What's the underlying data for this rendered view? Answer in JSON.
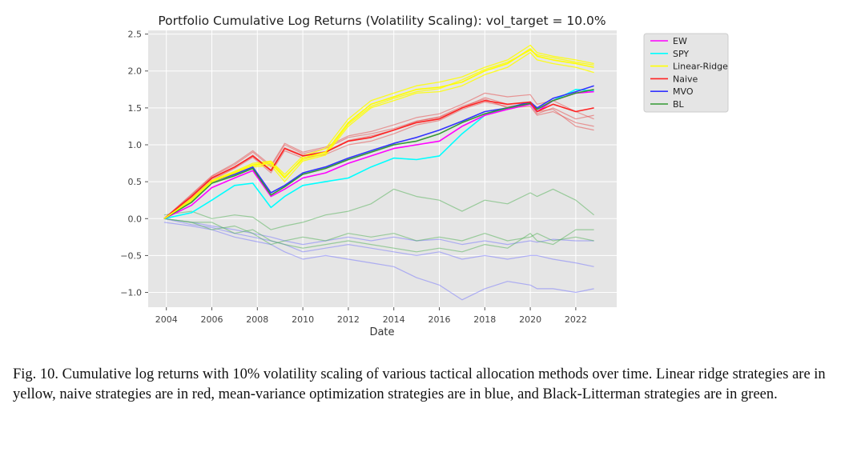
{
  "figure": {
    "caption": "Fig. 10.  Cumulative log returns with 10% volatility scaling of various tactical allocation methods over time. Linear ridge strategies are in yellow, naive strategies are in red, mean-variance optimization strategies are in blue, and Black-Litterman strategies are in green."
  },
  "chart_data": {
    "type": "line",
    "title": "Portfolio Cumulative Log Returns (Volatility Scaling): vol_target = 10.0%",
    "xlabel": "Date",
    "ylabel": "",
    "xlim": [
      2003.2,
      2023.8
    ],
    "ylim": [
      -1.2,
      2.55
    ],
    "x_ticks": [
      2004,
      2006,
      2008,
      2010,
      2012,
      2014,
      2016,
      2018,
      2020,
      2022
    ],
    "y_ticks": [
      2.5,
      2.0,
      1.5,
      1.0,
      0.5,
      0.0,
      -0.5,
      -1.0
    ],
    "y_tick_labels": [
      "2.5",
      "2.0",
      "1.5",
      "1.0",
      "0.5",
      "0.0",
      "−0.5",
      "−1.0"
    ],
    "grid": true,
    "background": "#e5e5e5",
    "legend_position": "upper-right (outside plot)",
    "legend": [
      {
        "name": "EW",
        "color": "#ff00ff"
      },
      {
        "name": "SPY",
        "color": "#00ffff"
      },
      {
        "name": "Linear-Ridge",
        "color": "#ffff00"
      },
      {
        "name": "Naive",
        "color": "#ff2222"
      },
      {
        "name": "MVO",
        "color": "#3333ff"
      },
      {
        "name": "BL",
        "color": "#339933"
      }
    ],
    "x": [
      2003.9,
      2005.1,
      2006.0,
      2007.0,
      2007.8,
      2008.6,
      2009.2,
      2010.0,
      2011.0,
      2012.0,
      2013.0,
      2014.0,
      2015.0,
      2016.0,
      2017.0,
      2018.0,
      2019.0,
      2020.0,
      2020.3,
      2021.0,
      2022.0,
      2022.8
    ],
    "series": [
      {
        "name": "SPY",
        "color": "#00ffff",
        "opacity": 1.0,
        "width": 1.6,
        "values": [
          0.0,
          0.08,
          0.25,
          0.45,
          0.48,
          0.15,
          0.3,
          0.45,
          0.5,
          0.55,
          0.7,
          0.82,
          0.8,
          0.85,
          1.15,
          1.4,
          1.5,
          1.55,
          1.45,
          1.6,
          1.75,
          1.73
        ]
      },
      {
        "name": "EW",
        "color": "#ff00ff",
        "opacity": 1.0,
        "width": 1.6,
        "values": [
          0.0,
          0.18,
          0.42,
          0.55,
          0.65,
          0.3,
          0.4,
          0.55,
          0.62,
          0.75,
          0.85,
          0.95,
          1.0,
          1.05,
          1.25,
          1.4,
          1.48,
          1.55,
          1.45,
          1.6,
          1.7,
          1.72
        ]
      },
      {
        "name": "MVO",
        "color": "#3333ff",
        "opacity": 1.0,
        "width": 1.6,
        "values": [
          0.0,
          0.25,
          0.5,
          0.6,
          0.7,
          0.35,
          0.45,
          0.62,
          0.7,
          0.82,
          0.92,
          1.02,
          1.1,
          1.2,
          1.32,
          1.45,
          1.5,
          1.58,
          1.5,
          1.63,
          1.72,
          1.8
        ]
      },
      {
        "name": "BL",
        "color": "#339933",
        "opacity": 1.0,
        "width": 1.6,
        "values": [
          0.0,
          0.22,
          0.48,
          0.58,
          0.68,
          0.32,
          0.43,
          0.6,
          0.68,
          0.8,
          0.9,
          1.0,
          1.05,
          1.15,
          1.3,
          1.42,
          1.5,
          1.56,
          1.48,
          1.6,
          1.7,
          1.75
        ]
      },
      {
        "name": "Naive",
        "color": "#ff2222",
        "opacity": 1.0,
        "width": 1.6,
        "values": [
          0.0,
          0.3,
          0.55,
          0.7,
          0.85,
          0.65,
          0.95,
          0.85,
          0.9,
          1.05,
          1.1,
          1.2,
          1.3,
          1.35,
          1.5,
          1.6,
          1.55,
          1.58,
          1.45,
          1.55,
          1.45,
          1.5
        ]
      },
      {
        "name": "Linear-Ridge",
        "color": "#ffff00",
        "opacity": 1.0,
        "width": 1.6,
        "values": [
          0.0,
          0.25,
          0.5,
          0.62,
          0.72,
          0.75,
          0.55,
          0.82,
          0.9,
          1.3,
          1.55,
          1.65,
          1.75,
          1.78,
          1.85,
          2.0,
          2.1,
          2.3,
          2.2,
          2.15,
          2.1,
          2.05
        ]
      },
      {
        "name": "",
        "color": "#e85050",
        "opacity": 0.55,
        "width": 1.2,
        "values": [
          0.0,
          0.32,
          0.57,
          0.73,
          0.9,
          0.7,
          1.0,
          0.88,
          0.95,
          1.1,
          1.15,
          1.22,
          1.32,
          1.38,
          1.52,
          1.62,
          1.5,
          1.52,
          1.4,
          1.45,
          1.3,
          1.25
        ]
      },
      {
        "name": "",
        "color": "#e85050",
        "opacity": 0.55,
        "width": 1.2,
        "values": [
          0.0,
          0.28,
          0.52,
          0.68,
          0.83,
          0.62,
          0.92,
          0.82,
          0.87,
          1.0,
          1.05,
          1.15,
          1.27,
          1.33,
          1.48,
          1.58,
          1.52,
          1.55,
          1.42,
          1.5,
          1.35,
          1.4
        ]
      },
      {
        "name": "",
        "color": "#e85050",
        "opacity": 0.55,
        "width": 1.2,
        "values": [
          0.0,
          0.33,
          0.58,
          0.75,
          0.92,
          0.72,
          1.02,
          0.9,
          0.97,
          1.12,
          1.18,
          1.27,
          1.37,
          1.42,
          1.55,
          1.7,
          1.65,
          1.68,
          1.55,
          1.6,
          1.45,
          1.35
        ]
      },
      {
        "name": "",
        "color": "#e85050",
        "opacity": 0.55,
        "width": 1.2,
        "values": [
          0.0,
          0.29,
          0.54,
          0.69,
          0.86,
          0.66,
          0.96,
          0.86,
          0.91,
          1.06,
          1.12,
          1.2,
          1.32,
          1.37,
          1.5,
          1.64,
          1.55,
          1.57,
          1.45,
          1.48,
          1.25,
          1.2
        ]
      },
      {
        "name": "",
        "color": "#ffff00",
        "opacity": 0.85,
        "width": 1.3,
        "values": [
          0.0,
          0.27,
          0.52,
          0.64,
          0.75,
          0.78,
          0.6,
          0.85,
          0.95,
          1.35,
          1.6,
          1.7,
          1.8,
          1.85,
          1.92,
          2.05,
          2.15,
          2.35,
          2.25,
          2.2,
          2.15,
          2.1
        ]
      },
      {
        "name": "",
        "color": "#ffff00",
        "opacity": 0.85,
        "width": 1.3,
        "values": [
          0.0,
          0.23,
          0.48,
          0.6,
          0.7,
          0.72,
          0.5,
          0.78,
          0.86,
          1.25,
          1.5,
          1.6,
          1.7,
          1.72,
          1.8,
          1.95,
          2.05,
          2.25,
          2.15,
          2.1,
          2.05,
          1.98
        ]
      },
      {
        "name": "",
        "color": "#ffff00",
        "opacity": 0.85,
        "width": 1.3,
        "values": [
          0.0,
          0.26,
          0.51,
          0.63,
          0.73,
          0.77,
          0.57,
          0.8,
          0.88,
          1.28,
          1.52,
          1.63,
          1.72,
          1.76,
          1.88,
          2.02,
          2.12,
          2.28,
          2.22,
          2.18,
          2.12,
          2.08
        ]
      },
      {
        "name": "",
        "color": "#4caf50",
        "opacity": 0.5,
        "width": 1.2,
        "values": [
          0.05,
          0.1,
          0.0,
          0.05,
          0.02,
          -0.15,
          -0.1,
          -0.05,
          0.05,
          0.1,
          0.2,
          0.4,
          0.3,
          0.25,
          0.1,
          0.25,
          0.2,
          0.35,
          0.3,
          0.4,
          0.25,
          0.05
        ]
      },
      {
        "name": "",
        "color": "#4caf50",
        "opacity": 0.5,
        "width": 1.2,
        "values": [
          0.0,
          -0.05,
          -0.15,
          -0.1,
          -0.2,
          -0.35,
          -0.3,
          -0.25,
          -0.3,
          -0.2,
          -0.25,
          -0.2,
          -0.3,
          -0.25,
          -0.3,
          -0.2,
          -0.3,
          -0.25,
          -0.2,
          -0.3,
          -0.25,
          -0.3
        ]
      },
      {
        "name": "",
        "color": "#4caf50",
        "opacity": 0.5,
        "width": 1.2,
        "values": [
          0.0,
          -0.05,
          -0.05,
          -0.2,
          -0.15,
          -0.3,
          -0.35,
          -0.4,
          -0.35,
          -0.3,
          -0.35,
          -0.4,
          -0.45,
          -0.4,
          -0.45,
          -0.35,
          -0.4,
          -0.2,
          -0.3,
          -0.35,
          -0.15,
          -0.15
        ]
      },
      {
        "name": "",
        "color": "#6666ff",
        "opacity": 0.45,
        "width": 1.2,
        "values": [
          -0.05,
          -0.1,
          -0.15,
          -0.25,
          -0.3,
          -0.35,
          -0.45,
          -0.55,
          -0.5,
          -0.55,
          -0.6,
          -0.65,
          -0.8,
          -0.9,
          -1.1,
          -0.95,
          -0.85,
          -0.9,
          -0.95,
          -0.95,
          -1.0,
          -0.95
        ]
      },
      {
        "name": "",
        "color": "#6666ff",
        "opacity": 0.45,
        "width": 1.2,
        "values": [
          0.0,
          -0.08,
          -0.12,
          -0.2,
          -0.25,
          -0.3,
          -0.35,
          -0.45,
          -0.4,
          -0.35,
          -0.4,
          -0.45,
          -0.5,
          -0.45,
          -0.55,
          -0.5,
          -0.55,
          -0.5,
          -0.5,
          -0.55,
          -0.6,
          -0.65
        ]
      },
      {
        "name": "",
        "color": "#6666ff",
        "opacity": 0.45,
        "width": 1.2,
        "values": [
          0.0,
          -0.05,
          -0.1,
          -0.15,
          -0.2,
          -0.25,
          -0.3,
          -0.35,
          -0.3,
          -0.25,
          -0.3,
          -0.25,
          -0.3,
          -0.28,
          -0.35,
          -0.3,
          -0.35,
          -0.3,
          -0.32,
          -0.28,
          -0.3,
          -0.3
        ]
      }
    ]
  }
}
